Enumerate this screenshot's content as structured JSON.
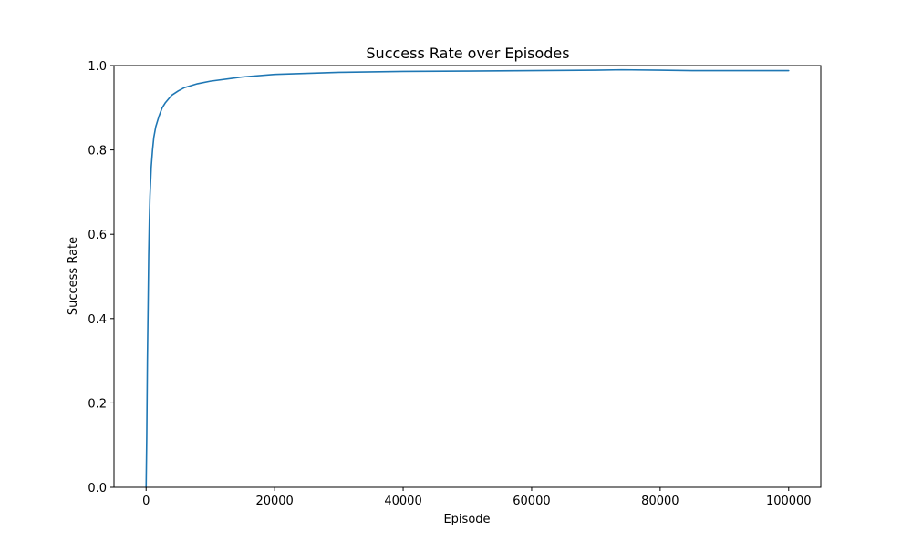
{
  "chart_data": {
    "type": "line",
    "title": "Success Rate over Episodes",
    "xlabel": "Episode",
    "ylabel": "Success Rate",
    "xlim": [
      -5000,
      105000
    ],
    "ylim": [
      0,
      1.0
    ],
    "x_ticks": [
      0,
      20000,
      40000,
      60000,
      80000,
      100000
    ],
    "y_ticks": [
      0.0,
      0.2,
      0.4,
      0.6,
      0.8,
      1.0
    ],
    "x_tick_labels": [
      "0",
      "20000",
      "40000",
      "60000",
      "80000",
      "100000"
    ],
    "y_tick_labels": [
      "0.0",
      "0.2",
      "0.4",
      "0.6",
      "0.8",
      "1.0"
    ],
    "grid": false,
    "series": [
      {
        "name": "",
        "color": "#1f77b4",
        "x": [
          0,
          100,
          200,
          300,
          400,
          500,
          600,
          800,
          1000,
          1200,
          1500,
          2000,
          2500,
          3000,
          4000,
          5000,
          6000,
          8000,
          10000,
          15000,
          20000,
          30000,
          40000,
          50000,
          60000,
          70000,
          74000,
          80000,
          85000,
          90000,
          95000,
          100000
        ],
        "y": [
          0.0,
          0.12,
          0.3,
          0.42,
          0.55,
          0.63,
          0.69,
          0.76,
          0.8,
          0.83,
          0.855,
          0.88,
          0.9,
          0.912,
          0.93,
          0.94,
          0.948,
          0.957,
          0.963,
          0.973,
          0.979,
          0.984,
          0.986,
          0.987,
          0.988,
          0.989,
          0.99,
          0.989,
          0.988,
          0.988,
          0.988,
          0.988
        ]
      }
    ]
  }
}
